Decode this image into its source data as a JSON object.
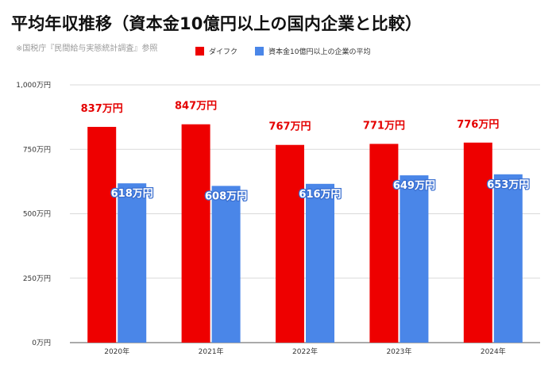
{
  "title": "平均年収推移（資本金10億円以上の国内企業と比較）",
  "source": "※国税庁『民間給与実態統計調査』参照",
  "chart_data": {
    "type": "bar",
    "categories": [
      "2020年",
      "2021年",
      "2022年",
      "2023年",
      "2024年"
    ],
    "series": [
      {
        "name": "ダイフク",
        "color": "#ee0000",
        "values": [
          837,
          847,
          767,
          771,
          776
        ],
        "value_labels": [
          "837万円",
          "847万円",
          "767万円",
          "771万円",
          "776万円"
        ]
      },
      {
        "name": "資本金10億円以上の企業の平均",
        "color": "#4a86e8",
        "values": [
          618,
          608,
          616,
          649,
          653
        ],
        "value_labels": [
          "618万円",
          "608万円",
          "616万円",
          "649万円",
          "653万円"
        ]
      }
    ],
    "ylim": [
      0,
      1000
    ],
    "yticks": [
      0,
      250,
      500,
      750,
      1000
    ],
    "ytick_labels": [
      "0万円",
      "250万円",
      "500万円",
      "750万円",
      "1,000万円"
    ],
    "grid": true,
    "legend_position": "top"
  }
}
